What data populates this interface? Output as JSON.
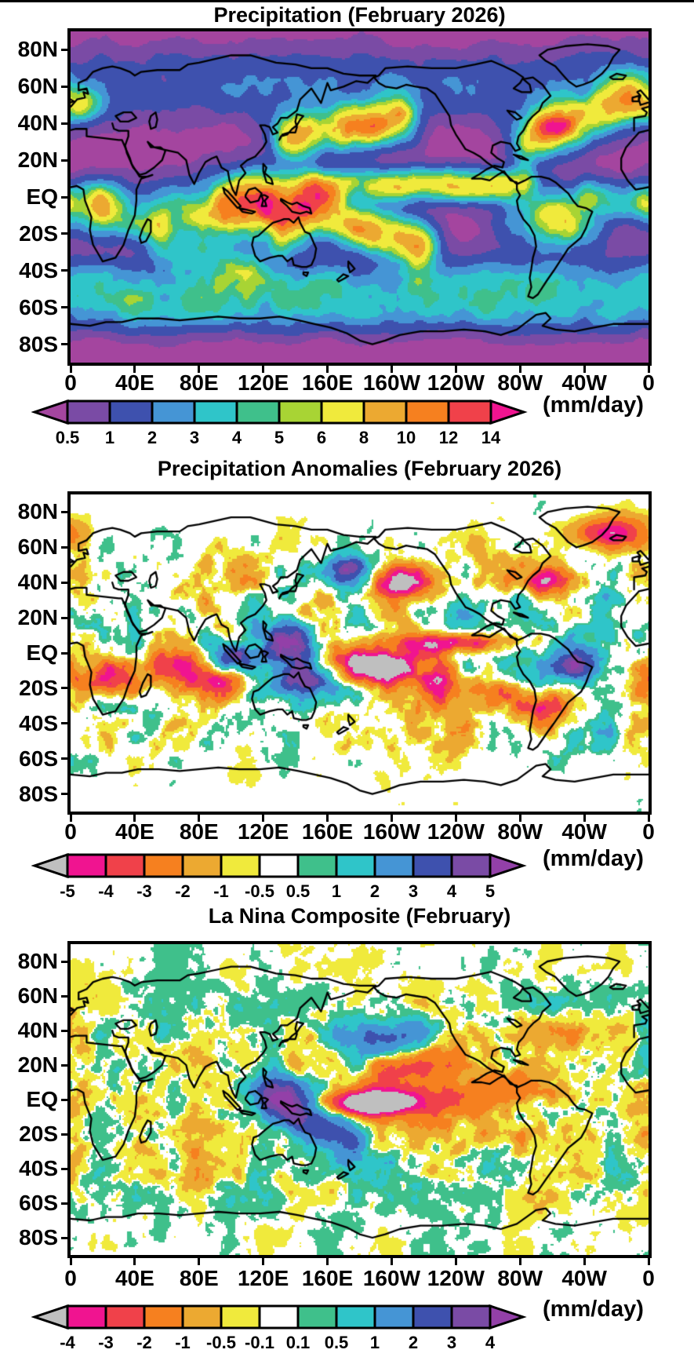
{
  "figure": {
    "description": "Three stacked global precipitation maps (equirectangular, Pacific-centered longitudes 0-360)"
  },
  "panels": [
    {
      "id": "precipitation",
      "title": "Precipitation (February 2026)",
      "units": "(mm/day)",
      "x_ticks": [
        "0",
        "40E",
        "80E",
        "120E",
        "160E",
        "160W",
        "120W",
        "80W",
        "40W",
        "0"
      ],
      "y_ticks": [
        "80N",
        "60N",
        "40N",
        "20N",
        "EQ",
        "20S",
        "40S",
        "60S",
        "80S"
      ],
      "colorbar": {
        "ticks": [
          "0.5",
          "1",
          "2",
          "3",
          "4",
          "5",
          "6",
          "8",
          "10",
          "12",
          "14"
        ],
        "colors": [
          "#a4459f",
          "#7a4ba5",
          "#3e51ae",
          "#4595d5",
          "#2fc5c9",
          "#3fc08b",
          "#a8d434",
          "#f0ea3c",
          "#eca931",
          "#f6801f",
          "#f0414a",
          "#f01490"
        ]
      }
    },
    {
      "id": "precipitation-anomalies",
      "title": "Precipitation Anomalies (February 2026)",
      "units": "(mm/day)",
      "x_ticks": [
        "0",
        "40E",
        "80E",
        "120E",
        "160E",
        "160W",
        "120W",
        "80W",
        "40W",
        "0"
      ],
      "y_ticks": [
        "80N",
        "60N",
        "40N",
        "20N",
        "EQ",
        "20S",
        "40S",
        "60S",
        "80S"
      ],
      "colorbar": {
        "ticks": [
          "-5",
          "-4",
          "-3",
          "-2",
          "-1",
          "-0.5",
          "0.5",
          "1",
          "2",
          "3",
          "4",
          "5"
        ],
        "colors": [
          "#bfbfbf",
          "#f01490",
          "#f0414a",
          "#f6801f",
          "#eca931",
          "#f0ea3c",
          "#ffffff",
          "#3fc08b",
          "#2fc5c9",
          "#4595d5",
          "#3e51ae",
          "#7a4ba5",
          "#9340a8"
        ]
      }
    },
    {
      "id": "la-nina-composite",
      "title": "La Nina Composite (February)",
      "units": "(mm/day)",
      "x_ticks": [
        "0",
        "40E",
        "80E",
        "120E",
        "160E",
        "160W",
        "120W",
        "80W",
        "40W",
        "0"
      ],
      "y_ticks": [
        "80N",
        "60N",
        "40N",
        "20N",
        "EQ",
        "20S",
        "40S",
        "60S",
        "80S"
      ],
      "colorbar": {
        "ticks": [
          "-4",
          "-3",
          "-2",
          "-1",
          "-0.5",
          "-0.1",
          "0.1",
          "0.5",
          "1",
          "2",
          "3",
          "4"
        ],
        "colors": [
          "#bfbfbf",
          "#f01490",
          "#f0414a",
          "#f6801f",
          "#eca931",
          "#f0ea3c",
          "#ffffff",
          "#3fc08b",
          "#2fc5c9",
          "#4595d5",
          "#3e51ae",
          "#7a4ba5",
          "#9340a8"
        ]
      }
    }
  ],
  "chart_data": [
    {
      "type": "heatmap",
      "title": "Precipitation (February 2026)",
      "units": "mm/day",
      "projection": "global equirectangular, Pacific-centered",
      "x_axis": {
        "label": "longitude",
        "ticks": [
          "0",
          "40E",
          "80E",
          "120E",
          "160E",
          "160W",
          "120W",
          "80W",
          "40W",
          "0"
        ],
        "range_deg": [
          0,
          360
        ]
      },
      "y_axis": {
        "label": "latitude",
        "ticks": [
          "80N",
          "60N",
          "40N",
          "20N",
          "EQ",
          "20S",
          "40S",
          "60S",
          "80S"
        ],
        "tick_lats": [
          80,
          60,
          40,
          20,
          0,
          -20,
          -40,
          -60,
          -80
        ],
        "range_deg": [
          -90,
          90
        ]
      },
      "levels": [
        0.5,
        1,
        2,
        3,
        4,
        5,
        6,
        8,
        10,
        12,
        14
      ],
      "palette": [
        "#a4459f",
        "#7a4ba5",
        "#3e51ae",
        "#4595d5",
        "#2fc5c9",
        "#3fc08b",
        "#a8d434",
        "#f0ea3c",
        "#eca931",
        "#f6801f",
        "#f0414a",
        "#f01490"
      ],
      "features": [
        "Background below 0.5 mm/day (purple) over subtropical dry zones, deserts and poles",
        "Heavy rain 8-14+ mm/day over Maritime Continent, SPCZ diagonal, Pacific ITCZ near 5N, Amazon and Congo basins",
        "North Pacific and North Atlantic storm tracks (yellow to red bands near 35-50N)",
        "Circumpolar Southern Ocean band 2-5 mm/day (blue-teal-green) near 45-60S"
      ]
    },
    {
      "type": "heatmap",
      "title": "Precipitation Anomalies (February 2026)",
      "units": "mm/day",
      "projection": "global equirectangular, Pacific-centered",
      "x_axis": {
        "label": "longitude",
        "ticks": [
          "0",
          "40E",
          "80E",
          "120E",
          "160E",
          "160W",
          "120W",
          "80W",
          "40W",
          "0"
        ],
        "range_deg": [
          0,
          360
        ]
      },
      "y_axis": {
        "label": "latitude",
        "ticks": [
          "80N",
          "60N",
          "40N",
          "20N",
          "EQ",
          "20S",
          "40S",
          "60S",
          "80S"
        ],
        "tick_lats": [
          80,
          60,
          40,
          20,
          0,
          -20,
          -40,
          -60,
          -80
        ],
        "range_deg": [
          -90,
          90
        ]
      },
      "levels": [
        -5,
        -4,
        -3,
        -2,
        -1,
        -0.5,
        0.5,
        1,
        2,
        3,
        4,
        5
      ],
      "palette": [
        "#bfbfbf",
        "#f01490",
        "#f0414a",
        "#f6801f",
        "#eca931",
        "#f0ea3c",
        "#ffffff",
        "#3fc08b",
        "#2fc5c9",
        "#4595d5",
        "#3e51ae",
        "#7a4ba5",
        "#9340a8"
      ],
      "features": [
        "Strong dry anomaly (below -5 mm/day, gray core ringed by magenta) over central equatorial Pacific near the dateline",
        "Dry (negative) band along ~5N in eastern Pacific and over North Atlantic near 40N",
        "Wet (positive, blue-purple) anomalies over Maritime Continent / western Pacific and near SPCZ",
        "Mottled orange (dry) and teal (wet) anomalies elsewhere; white where within +/-0.5 mm/day"
      ]
    },
    {
      "type": "heatmap",
      "title": "La Nina Composite (February)",
      "units": "mm/day",
      "projection": "global equirectangular, Pacific-centered",
      "x_axis": {
        "label": "longitude",
        "ticks": [
          "0",
          "40E",
          "80E",
          "120E",
          "160E",
          "160W",
          "120W",
          "80W",
          "40W",
          "0"
        ],
        "range_deg": [
          0,
          360
        ]
      },
      "y_axis": {
        "label": "latitude",
        "ticks": [
          "80N",
          "60N",
          "40N",
          "20N",
          "EQ",
          "20S",
          "40S",
          "60S",
          "80S"
        ],
        "tick_lats": [
          80,
          60,
          40,
          20,
          0,
          -20,
          -40,
          -60,
          -80
        ],
        "range_deg": [
          -90,
          90
        ]
      },
      "levels": [
        -4,
        -3,
        -2,
        -1,
        -0.5,
        -0.1,
        0.1,
        0.5,
        1,
        2,
        3,
        4
      ],
      "palette": [
        "#bfbfbf",
        "#f01490",
        "#f0414a",
        "#f6801f",
        "#eca931",
        "#f0ea3c",
        "#ffffff",
        "#3fc08b",
        "#2fc5c9",
        "#4595d5",
        "#3e51ae",
        "#7a4ba5",
        "#9340a8"
      ],
      "features": [
        "Classic La Nina dry signal (below -4 mm/day, gray core with magenta ring) along the equatorial central Pacific",
        "Orange dry wedge extending east toward South America",
        "Wet (blue-indigo) signal over Maritime Continent, Philippines and SPCZ",
        "Widespread weak yellow (dry) / green (wet) mottle; white where within +/-0.1 mm/day"
      ]
    }
  ]
}
